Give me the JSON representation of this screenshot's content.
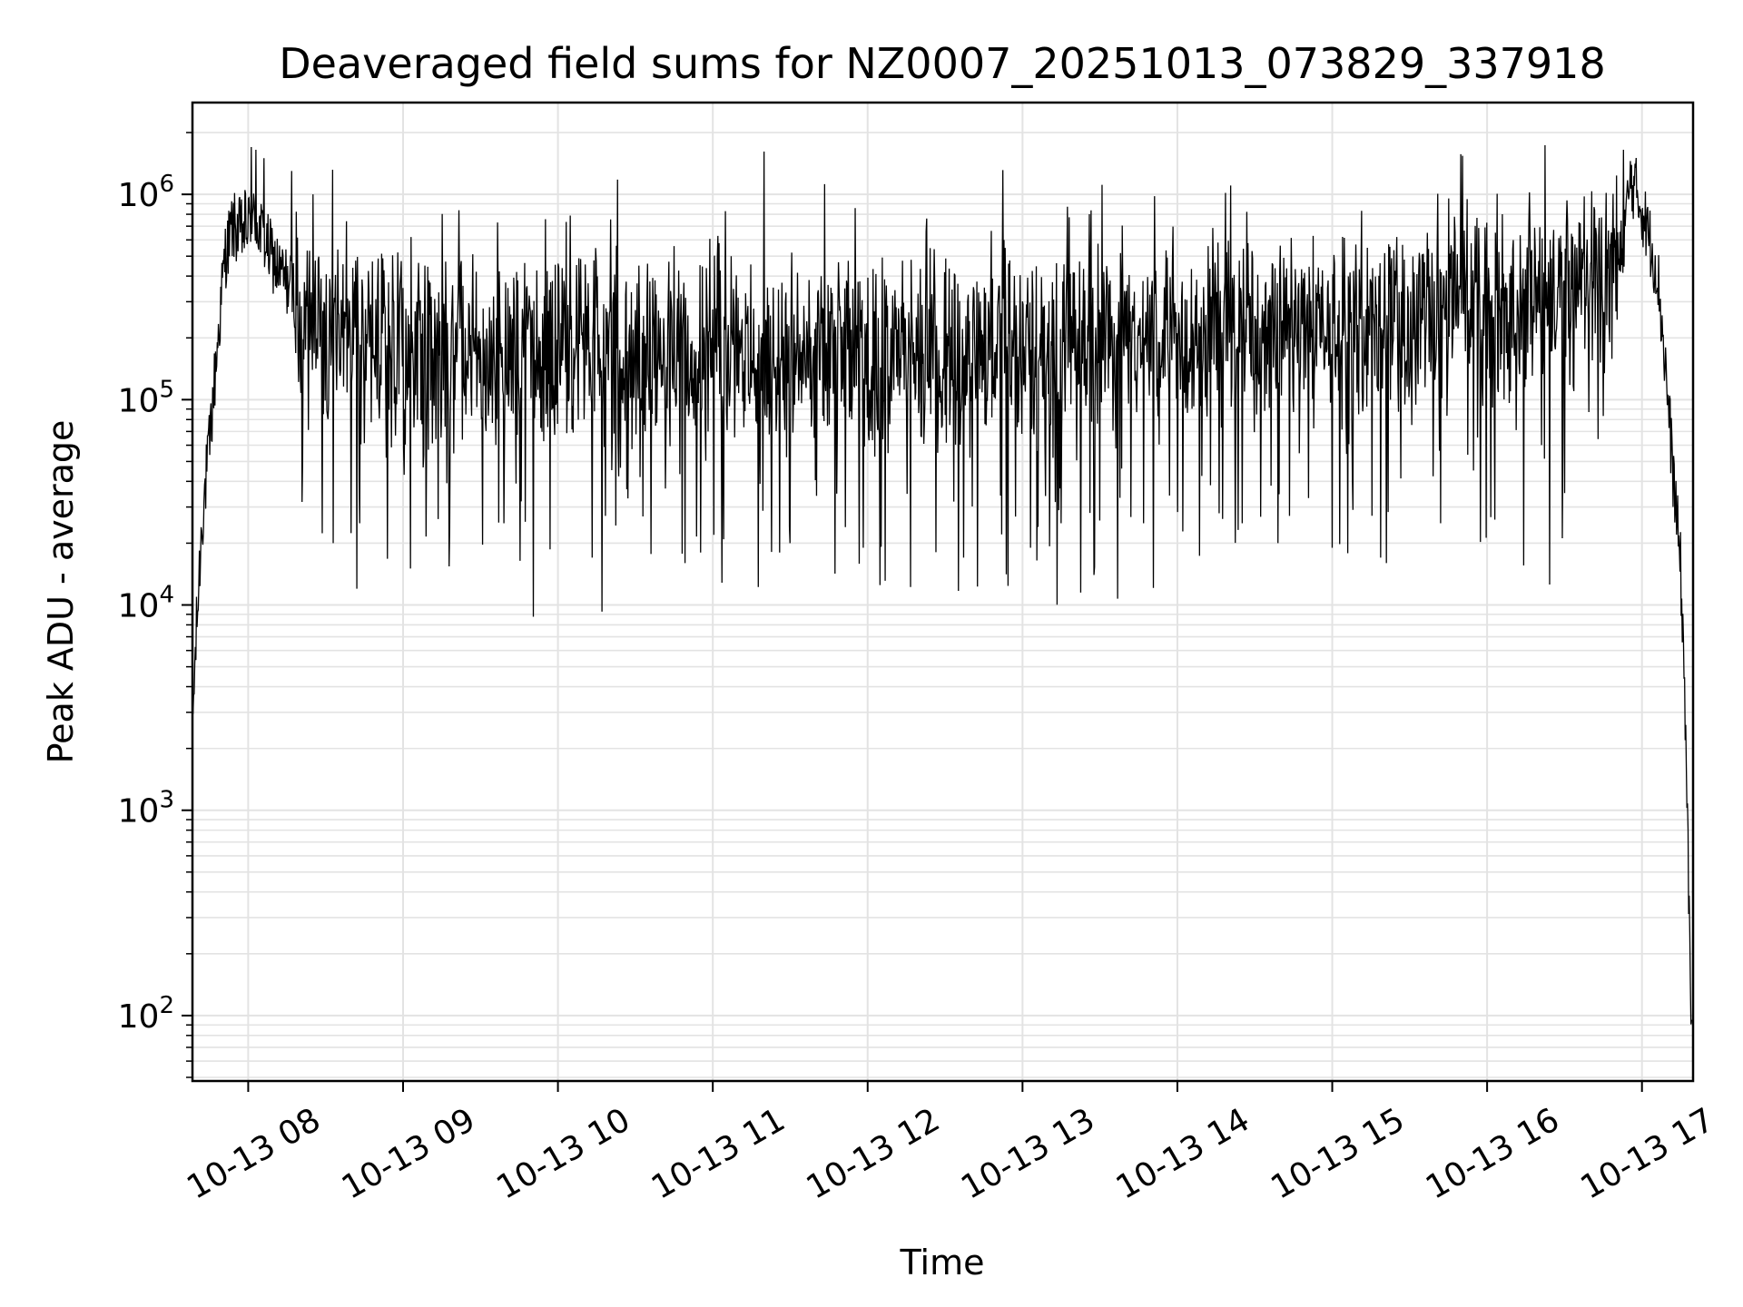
{
  "chart_data": {
    "type": "line",
    "title": "Deaveraged field sums for NZ0007_20251013_073829_337918",
    "xlabel": "Time",
    "ylabel": "Peak ADU - average",
    "yscale": "log",
    "ylim": [
      48,
      2800000
    ],
    "xlim_hours": [
      7.64,
      17.33
    ],
    "x_tick_hours": [
      8,
      9,
      10,
      11,
      12,
      13,
      14,
      15,
      16,
      17
    ],
    "x_tick_labels": [
      "10-13 08",
      "10-13 09",
      "10-13 10",
      "10-13 11",
      "10-13 12",
      "10-13 13",
      "10-13 14",
      "10-13 15",
      "10-13 16",
      "10-13 17"
    ],
    "y_tick_values": [
      100,
      1000,
      10000,
      100000,
      1000000
    ],
    "y_tick_base": "10",
    "y_tick_exponents": [
      "2",
      "3",
      "4",
      "5",
      "6"
    ],
    "grid": true,
    "line_color": "#000000",
    "grid_color": "#e3e3e3",
    "series": [
      {
        "name": "deaveraged field sum",
        "envelope_hours": [
          7.64,
          7.66,
          7.7,
          7.75,
          7.8,
          7.85,
          7.9,
          7.95,
          8.0,
          8.05,
          8.1,
          8.2,
          8.35,
          8.5,
          8.7,
          9.0,
          9.5,
          10.0,
          10.5,
          11.0,
          11.5,
          12.0,
          12.5,
          13.0,
          13.5,
          14.0,
          14.5,
          15.0,
          15.5,
          16.0,
          16.3,
          16.6,
          16.85,
          16.93,
          17.0,
          17.05,
          17.1,
          17.15,
          17.2,
          17.25,
          17.28,
          17.3,
          17.31,
          17.32
        ],
        "envelope_median": [
          2500,
          6000,
          25000,
          60000,
          180000,
          500000,
          700000,
          650000,
          700000,
          750000,
          600000,
          420000,
          300000,
          230000,
          190000,
          175000,
          170000,
          175000,
          170000,
          165000,
          170000,
          165000,
          175000,
          180000,
          190000,
          200000,
          210000,
          220000,
          240000,
          270000,
          300000,
          340000,
          420000,
          1200000,
          850000,
          600000,
          420000,
          150000,
          45000,
          15000,
          3000,
          500,
          150,
          70
        ],
        "spikes": [
          {
            "t": 8.02,
            "v": 1700000
          },
          {
            "t": 8.05,
            "v": 1650000
          },
          {
            "t": 8.1,
            "v": 1500000
          },
          {
            "t": 7.98,
            "v": 1050000
          },
          {
            "t": 8.28,
            "v": 1300000
          },
          {
            "t": 8.42,
            "v": 1000000
          },
          {
            "t": 8.55,
            "v": 20000
          },
          {
            "t": 8.7,
            "v": 12000
          },
          {
            "t": 8.72,
            "v": 25000
          },
          {
            "t": 9.05,
            "v": 620000
          },
          {
            "t": 9.3,
            "v": 25000
          },
          {
            "t": 9.65,
            "v": 25000
          },
          {
            "t": 10.0,
            "v": 460000
          },
          {
            "t": 10.22,
            "v": 17000
          },
          {
            "t": 10.55,
            "v": 27000
          },
          {
            "t": 10.75,
            "v": 560000
          },
          {
            "t": 10.82,
            "v": 16000
          },
          {
            "t": 10.92,
            "v": 18000
          },
          {
            "t": 11.12,
            "v": 500000
          },
          {
            "t": 11.43,
            "v": 18000
          },
          {
            "t": 11.5,
            "v": 20000
          },
          {
            "t": 11.67,
            "v": 34000
          },
          {
            "t": 11.97,
            "v": 19000
          },
          {
            "t": 12.08,
            "v": 12500
          },
          {
            "t": 12.28,
            "v": 480000
          },
          {
            "t": 12.62,
            "v": 17000
          },
          {
            "t": 12.88,
            "v": 600000
          },
          {
            "t": 13.05,
            "v": 19000
          },
          {
            "t": 13.25,
            "v": 25000
          },
          {
            "t": 13.46,
            "v": 14000
          },
          {
            "t": 13.78,
            "v": 25000
          },
          {
            "t": 14.2,
            "v": 560000
          },
          {
            "t": 14.42,
            "v": 25000
          },
          {
            "t": 14.65,
            "v": 20000
          },
          {
            "t": 15.0,
            "v": 19000
          },
          {
            "t": 15.35,
            "v": 16000
          },
          {
            "t": 15.7,
            "v": 25000
          },
          {
            "t": 16.1,
            "v": 800000
          },
          {
            "t": 16.52,
            "v": 750000
          },
          {
            "t": 16.88,
            "v": 1650000
          },
          {
            "t": 16.95,
            "v": 1100000
          }
        ]
      }
    ]
  }
}
